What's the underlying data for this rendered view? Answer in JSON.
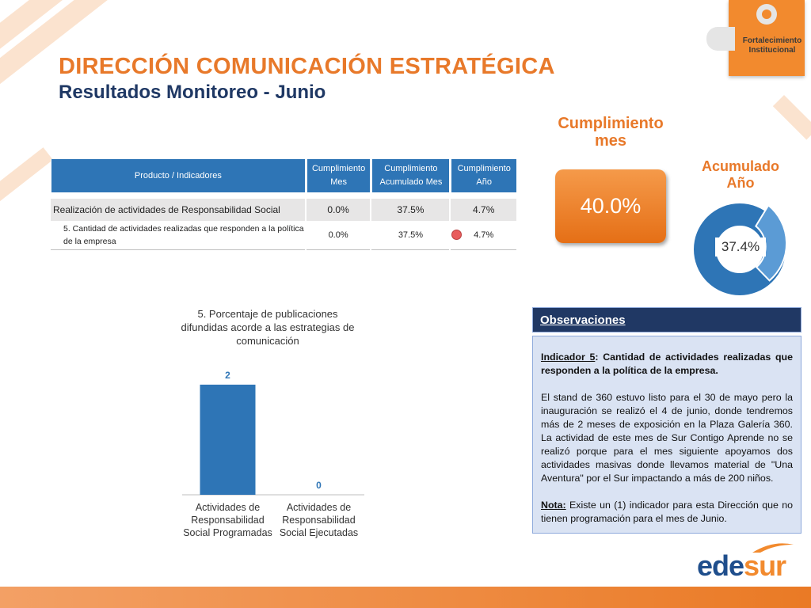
{
  "header": {
    "title": "DIRECCIÓN COMUNICACIÓN ESTRATÉGICA",
    "subtitle": "Resultados Monitoreo - Junio",
    "logo_text_line1": "Fortalecimiento",
    "logo_text_line2": "Institucional"
  },
  "table": {
    "headers": {
      "product": "Producto / Indicadores",
      "mes_line1": "Cumplimiento",
      "mes_line2": "Mes",
      "acum_line1": "Cumplimiento",
      "acum_line2": "Acumulado Mes",
      "anio_line1": "Cumplimiento",
      "anio_line2": "Año"
    },
    "rows": [
      {
        "label": "Realización de actividades de Responsabilidad Social",
        "mes": "0.0%",
        "acum": "37.5%",
        "anio": "4.7%"
      },
      {
        "label_line1": "5. Cantidad de actividades realizadas que responden a la política",
        "label_line2": "de la empresa",
        "mes": "0.0%",
        "acum": "37.5%",
        "anio": "4.7%",
        "status_color": "#e85c5c"
      }
    ]
  },
  "kpis": {
    "mes_label_line1": "Cumplimiento",
    "mes_label_line2": "mes",
    "mes_value": "40.0%",
    "anio_label_line1": "Acumulado",
    "anio_label_line2": "Año",
    "anio_value": "37.4%"
  },
  "chart_data": {
    "type": "bar",
    "title_lines": [
      "5. Porcentaje de publicaciones",
      "difundidas acorde a las estrategias de",
      "comunicación"
    ],
    "categories": [
      [
        "Actividades de",
        "Responsabilidad",
        "Social Programadas"
      ],
      [
        "Actividades de",
        "Responsabilidad",
        "Social Ejecutadas"
      ]
    ],
    "values": [
      2,
      0
    ],
    "value_labels": [
      "2",
      "0"
    ],
    "ylim": [
      0,
      2.3
    ],
    "bar_color": "#2e75b6",
    "label_color": "#2e75b6"
  },
  "observaciones": {
    "heading": "Observaciones",
    "p1_label": "Indicador 5",
    "p1_text": ": Cantidad de actividades realizadas que responden a la política de la empresa.",
    "p2_text": "El stand de 360 estuvo listo para el 30 de mayo pero la inauguración se realizó el 4 de junio, donde tendremos más de 2 meses de exposición en la Plaza Galería 360. La actividad de este mes de Sur Contigo Aprende no se realizó porque  para el mes siguiente apoyamos dos actividades masivas donde llevamos material de \"Una Aventura\" por el Sur impactando a más de 200 niños.",
    "p3_label": "Nota:",
    "p3_text": " Existe un (1) indicador para esta Dirección que no tienen programación para el mes de Junio."
  },
  "brand": {
    "name_part1": "ede",
    "name_part2": "sur",
    "primary": "#1f4e8c",
    "accent": "#f28a2e"
  }
}
